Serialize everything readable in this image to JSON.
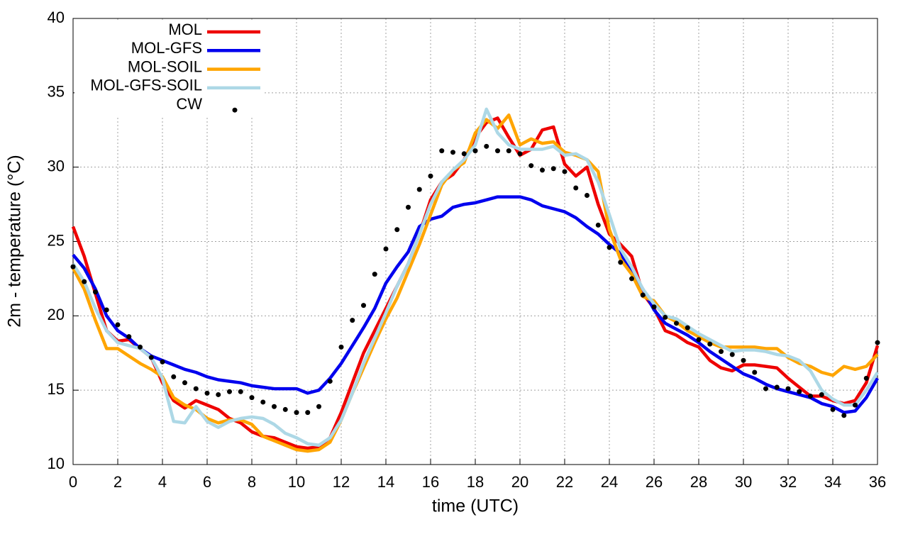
{
  "chart_data": {
    "type": "line",
    "x_label": "time (UTC)",
    "y_label": "2m - temperature (°C)",
    "x": [
      0,
      0.5,
      1,
      1.5,
      2,
      2.5,
      3,
      3.5,
      4,
      4.5,
      5,
      5.5,
      6,
      6.5,
      7,
      7.5,
      8,
      8.5,
      9,
      9.5,
      10,
      10.5,
      11,
      11.5,
      12,
      12.5,
      13,
      13.5,
      14,
      14.5,
      15,
      15.5,
      16,
      16.5,
      17,
      17.5,
      18,
      18.5,
      19,
      19.5,
      20,
      20.5,
      21,
      21.5,
      22,
      22.5,
      23,
      23.5,
      24,
      24.5,
      25,
      25.5,
      26,
      26.5,
      27,
      27.5,
      28,
      28.5,
      29,
      29.5,
      30,
      30.5,
      31,
      31.5,
      32,
      32.5,
      33,
      33.5,
      34,
      34.5,
      35,
      35.5,
      36
    ],
    "series": [
      {
        "name": "MOL",
        "color": "#ee0000",
        "style": "line",
        "values": [
          26,
          24,
          21.5,
          19,
          18.3,
          18.4,
          17.8,
          17.2,
          15.5,
          14.3,
          13.8,
          14.3,
          14,
          13.7,
          13.1,
          12.8,
          12.2,
          11.9,
          11.8,
          11.5,
          11.2,
          11.1,
          11.2,
          11.8,
          13.5,
          15.5,
          17.5,
          19,
          20.5,
          22,
          23.5,
          25.5,
          27.8,
          29,
          29.5,
          30.5,
          32,
          33,
          33.3,
          32,
          30.8,
          31.2,
          32.5,
          32.7,
          30.2,
          29.4,
          30,
          27.5,
          25.5,
          24.8,
          24,
          21.5,
          20.5,
          19,
          18.7,
          18.2,
          17.9,
          17,
          16.5,
          16.3,
          16.7,
          16.7,
          16.6,
          16.5,
          15.8,
          15.2,
          14.6,
          14.6,
          14.3,
          14.1,
          14.3,
          15.5,
          18
        ]
      },
      {
        "name": "MOL-GFS",
        "color": "#0000ee",
        "style": "line",
        "values": [
          24.1,
          23.2,
          21.8,
          20,
          19,
          18.5,
          17.8,
          17.3,
          17,
          16.7,
          16.4,
          16.2,
          15.9,
          15.7,
          15.6,
          15.5,
          15.3,
          15.2,
          15.1,
          15.1,
          15.1,
          14.8,
          15,
          15.8,
          16.8,
          18,
          19.2,
          20.5,
          22.2,
          23.3,
          24.3,
          26,
          26.5,
          26.7,
          27.3,
          27.5,
          27.6,
          27.8,
          28,
          28,
          28,
          27.8,
          27.4,
          27.2,
          27,
          26.6,
          26,
          25.5,
          24.8,
          24.2,
          23,
          21.8,
          20.4,
          19.5,
          19.1,
          18.7,
          18.2,
          17.6,
          17.1,
          16.6,
          16.1,
          15.8,
          15.4,
          15.1,
          14.9,
          14.7,
          14.5,
          14.1,
          13.9,
          13.5,
          13.6,
          14.5,
          15.8
        ]
      },
      {
        "name": "MOL-SOIL",
        "color": "#ffa500",
        "style": "line",
        "values": [
          23.2,
          21.8,
          19.7,
          17.8,
          17.8,
          17.3,
          16.8,
          16.4,
          15.9,
          14.5,
          14,
          13.7,
          13.1,
          12.8,
          13,
          13,
          12.7,
          11.9,
          11.6,
          11.3,
          11,
          10.9,
          11,
          11.5,
          13,
          14.8,
          16.5,
          18.2,
          19.8,
          21.2,
          23,
          24.8,
          26.8,
          28.8,
          29.8,
          30.3,
          32.3,
          33.2,
          32.6,
          33.5,
          31.5,
          31.9,
          31.6,
          31.7,
          31,
          30.8,
          30.5,
          29.7,
          25.8,
          23.8,
          22.8,
          21.3,
          21,
          20,
          19.6,
          19,
          18.6,
          18.2,
          17.9,
          17.9,
          17.9,
          17.9,
          17.8,
          17.8,
          17.2,
          16.8,
          16.6,
          16.2,
          16,
          16.6,
          16.4,
          16.6,
          17.4
        ]
      },
      {
        "name": "MOL-GFS-SOIL",
        "color": "#add8e6",
        "style": "line",
        "values": [
          23.5,
          22.3,
          20.5,
          19,
          18.2,
          18,
          17.8,
          17.2,
          15.8,
          12.9,
          12.8,
          13.9,
          12.9,
          12.5,
          12.9,
          13.1,
          13.2,
          13.1,
          12.7,
          12.1,
          11.8,
          11.4,
          11.3,
          11.8,
          13,
          14.8,
          16.8,
          18.5,
          20.2,
          22,
          23.5,
          25.5,
          27.5,
          29,
          29.8,
          30.5,
          31.5,
          33.9,
          32.3,
          31.5,
          31.2,
          31.2,
          31.2,
          31.4,
          30.8,
          30.9,
          30.5,
          29,
          26.8,
          24.5,
          23.3,
          21.8,
          20.8,
          20,
          19.8,
          19.3,
          18.8,
          18.4,
          18,
          17.6,
          17.7,
          17.7,
          17.6,
          17.4,
          17.3,
          17,
          16.3,
          15,
          14.4,
          14,
          14,
          15,
          16.2
        ]
      },
      {
        "name": "CW",
        "color": "#000000",
        "style": "points",
        "values": [
          23.3,
          22.3,
          21.6,
          20.4,
          19.4,
          18.6,
          17.9,
          17.2,
          16.9,
          15.9,
          15.5,
          15.1,
          14.8,
          14.7,
          14.9,
          14.9,
          14.5,
          14.2,
          13.9,
          13.7,
          13.5,
          13.5,
          13.9,
          15.6,
          17.9,
          19.7,
          20.7,
          22.8,
          24.5,
          25.8,
          27.3,
          28.5,
          29.4,
          31.1,
          31,
          30.9,
          31.1,
          31.4,
          31.1,
          31.1,
          30.9,
          30.1,
          29.8,
          29.9,
          29.7,
          28.6,
          28.1,
          26.1,
          24.6,
          23.6,
          22.5,
          21.4,
          20.6,
          19.9,
          19.5,
          19.2,
          18.4,
          18.1,
          17.6,
          17.4,
          17,
          16.2,
          15.1,
          15.2,
          15.1,
          14.9,
          14.6,
          14.7,
          13.7,
          13.3,
          14,
          15.8,
          18.2
        ]
      }
    ],
    "xlim": [
      0,
      36
    ],
    "xticks": [
      0,
      2,
      4,
      6,
      8,
      10,
      12,
      14,
      16,
      18,
      20,
      22,
      24,
      26,
      28,
      30,
      32,
      34,
      36
    ],
    "ylim": [
      10,
      40
    ],
    "yticks": [
      10,
      15,
      20,
      25,
      30,
      35,
      40
    ],
    "grid": true,
    "legend": "top-left"
  }
}
